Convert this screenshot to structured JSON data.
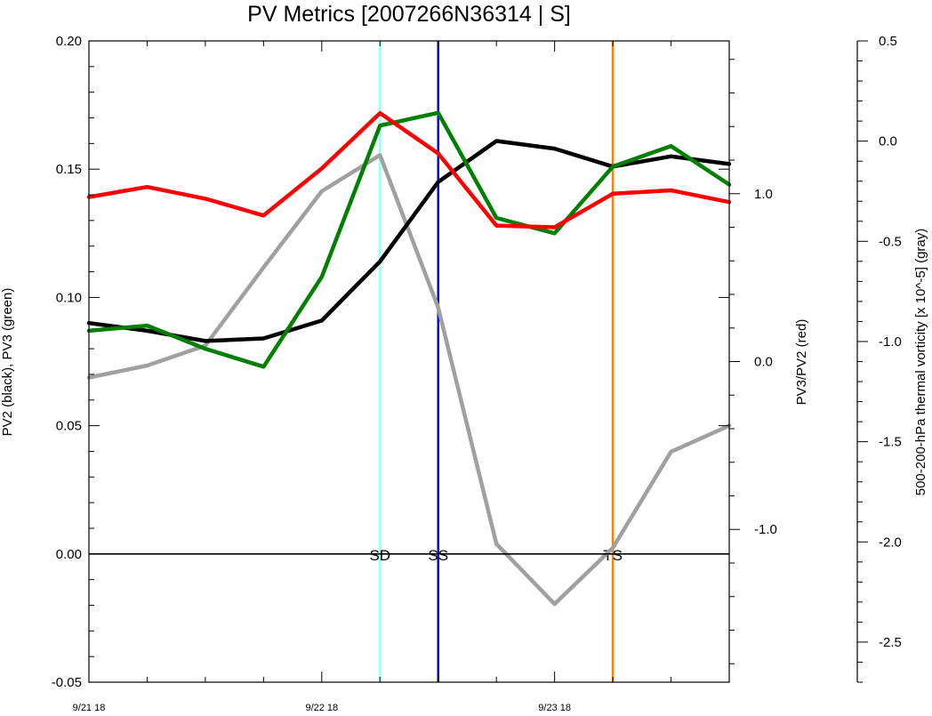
{
  "chart_data": {
    "type": "line",
    "title": "PV Metrics [2007266N36314 | S]",
    "x": [
      0,
      1,
      2,
      3,
      4,
      5,
      6,
      7,
      8,
      9,
      10,
      11
    ],
    "xlim": [
      0,
      11
    ],
    "xticks": [
      {
        "x": 0,
        "label": "9/21 18"
      },
      {
        "x": 4,
        "label": "9/22 18"
      },
      {
        "x": 8,
        "label": "9/23 18"
      }
    ],
    "axes": {
      "left": {
        "label": "PV2 (black), PV3 (green)",
        "ylim": [
          -0.05,
          0.2
        ],
        "ticks": [
          "-0.05",
          "0.00",
          "0.05",
          "0.10",
          "0.15",
          "0.20"
        ]
      },
      "right": {
        "label": "PV3/PV2 (red)",
        "ylim": [
          -1.91,
          1.91
        ],
        "ticks": [
          "-1.0",
          "0.0",
          "1.0"
        ]
      },
      "far_right": {
        "label": "500-200-hPa thermal vorticity [x 10^-5] (gray)",
        "ylim": [
          -2.7,
          0.5
        ],
        "ticks": [
          "-2.5",
          "-2.0",
          "-1.5",
          "-1.0",
          "-0.5",
          "0.0",
          "0.5"
        ]
      }
    },
    "series": [
      {
        "axis": "left",
        "color": "#000000",
        "values": [
          0.09,
          0.087,
          0.083,
          0.084,
          0.091,
          0.114,
          0.145,
          0.161,
          0.158,
          0.151,
          0.155,
          0.152
        ]
      },
      {
        "axis": "left",
        "color": "#007f00",
        "values": [
          0.087,
          0.089,
          0.08,
          0.073,
          0.108,
          0.167,
          0.172,
          0.131,
          0.125,
          0.151,
          0.159,
          0.144
        ]
      },
      {
        "axis": "right",
        "color": "#ff0000",
        "values": [
          0.98,
          1.04,
          0.97,
          0.87,
          1.15,
          1.48,
          1.24,
          0.81,
          0.8,
          1.0,
          1.02,
          0.95
        ]
      },
      {
        "axis": "far_right",
        "color": "#a0a0a0",
        "values": [
          -1.18,
          -1.12,
          -1.02,
          -0.63,
          -0.25,
          -0.07,
          -0.83,
          -2.01,
          -2.31,
          -2.03,
          -1.55,
          -1.42
        ]
      }
    ],
    "vlines": [
      {
        "x": 5.0,
        "label": "SD",
        "color": "#99ffff"
      },
      {
        "x": 6.0,
        "label": "SS",
        "color": "#0000ee"
      },
      {
        "x": 9.0,
        "label": "TS",
        "color": "#ff7f00"
      }
    ],
    "zero_line": 0.0
  }
}
